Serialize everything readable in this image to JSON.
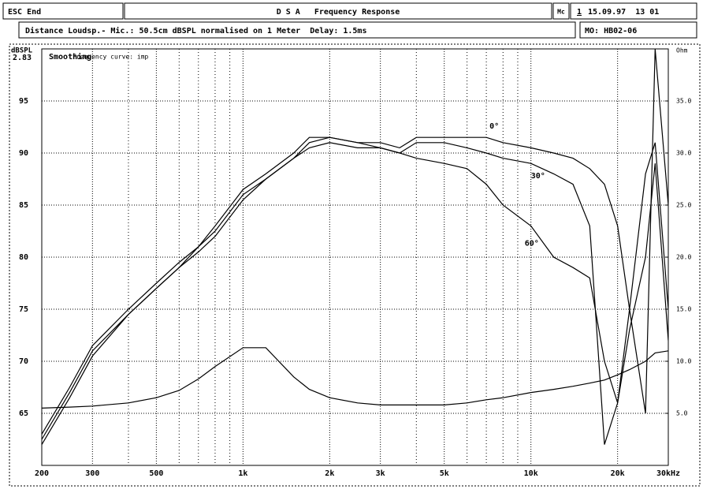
{
  "header": {
    "escape": "ESC End",
    "title": "D S A   Frequency Response",
    "icon": "Mc",
    "page": "1",
    "date": "15.09.97  13 01",
    "info": "Distance Loudsp.- Mic.: 50.5cm dBSPL normalised on 1 Meter  Delay: 1.5ms",
    "model": "MO: HB02-06"
  },
  "chart_data": {
    "type": "line",
    "xscale": "log",
    "grid": true,
    "ylabel": "dBSPL",
    "voltage_label": "2.83",
    "y2label": "Ohm",
    "annotations": [
      "Smoothing",
      "Frequency curve: imp"
    ],
    "x": [
      200,
      250,
      300,
      400,
      500,
      600,
      700,
      800,
      1000,
      1200,
      1500,
      1700,
      2000,
      2500,
      3000,
      3500,
      4000,
      5000,
      6000,
      7000,
      8000,
      10000,
      12000,
      14000,
      16000,
      18000,
      20000,
      22000,
      25000,
      27000,
      30000
    ],
    "series": [
      {
        "name": "0°",
        "color": "#000000",
        "values": [
          63,
          67.5,
          71.5,
          75,
          77.5,
          79.5,
          81,
          83,
          86.5,
          88,
          90,
          91.5,
          91.5,
          91,
          91,
          90.5,
          91.5,
          91.5,
          91.5,
          91.5,
          91,
          90.5,
          90,
          89.5,
          88.5,
          87,
          83,
          75,
          65,
          100,
          85
        ]
      },
      {
        "name": "30°",
        "color": "#000000",
        "values": [
          62.5,
          67,
          71,
          74.5,
          77,
          79,
          81,
          82.5,
          86,
          87.5,
          89.5,
          91,
          91.5,
          91,
          90.5,
          90,
          91,
          91,
          90.5,
          90,
          89.5,
          89,
          88,
          87,
          83,
          62,
          66,
          75,
          88,
          91,
          75
        ]
      },
      {
        "name": "60°",
        "color": "#000000",
        "values": [
          62,
          66.5,
          70.5,
          74.5,
          77,
          79,
          80.5,
          82,
          85.5,
          87.5,
          89.5,
          90.5,
          91,
          90.5,
          90.5,
          90,
          89.5,
          89,
          88.5,
          87,
          85,
          83,
          80,
          79,
          78,
          70,
          66,
          73,
          80,
          89,
          72
        ]
      },
      {
        "color": "#000000",
        "axis": "y2",
        "values": [
          5.5,
          5.6,
          5.7,
          6,
          6.5,
          7.2,
          8.3,
          9.5,
          11.3,
          11.3,
          8.5,
          7.3,
          6.5,
          6,
          5.8,
          5.8,
          5.8,
          5.8,
          6,
          6.3,
          6.5,
          7,
          7.3,
          7.6,
          7.9,
          8.2,
          8.7,
          9.2,
          10,
          10.8,
          11
        ]
      }
    ],
    "xlim": [
      200,
      30000
    ],
    "xticks": [
      200,
      300,
      500,
      {
        "value": 1000,
        "label": "1k"
      },
      {
        "value": 2000,
        "label": "2k"
      },
      {
        "value": 3000,
        "label": "3k"
      },
      {
        "value": 5000,
        "label": "5k"
      },
      {
        "value": 10000,
        "label": "10k"
      },
      {
        "value": 20000,
        "label": "20k"
      },
      {
        "value": 30000,
        "label": "30kHz"
      }
    ],
    "xgrid_minor": [
      400,
      600,
      700,
      800,
      900,
      4000,
      6000,
      7000,
      8000,
      9000
    ],
    "ylim": [
      60,
      100
    ],
    "yticks": [
      65,
      70,
      75,
      80,
      85,
      90,
      95
    ],
    "y2lim": [
      0,
      40
    ],
    "y2ticks": [
      {
        "value": 5,
        "label": "5.0"
      },
      {
        "value": 10,
        "label": "10.0"
      },
      {
        "value": 15,
        "label": "15.0"
      },
      {
        "value": 20,
        "label": "20.0"
      },
      {
        "value": 25,
        "label": "25.0"
      },
      {
        "value": 30,
        "label": "30.0"
      },
      {
        "value": 35,
        "label": "35.0"
      }
    ]
  }
}
